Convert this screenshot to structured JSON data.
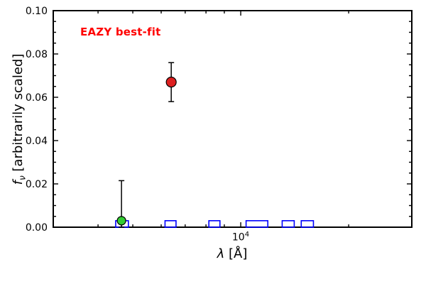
{
  "chart_data": {
    "type": "scatter",
    "title": "",
    "annotation": {
      "text": "EAZY best-fit",
      "color": "#ff0000"
    },
    "xlabel_parts": {
      "symbol": "λ",
      "rest": " [Å]"
    },
    "ylabel_parts": {
      "symbol": "f",
      "sub": "ν",
      "rest": " [arbitrarily scaled]"
    },
    "x_scale": "log",
    "xlim": [
      3000,
      30000
    ],
    "ylim": [
      0.0,
      0.1
    ],
    "yticks": [
      {
        "value": 0.0,
        "label": "0.00"
      },
      {
        "value": 0.02,
        "label": "0.02"
      },
      {
        "value": 0.04,
        "label": "0.04"
      },
      {
        "value": 0.06,
        "label": "0.06"
      },
      {
        "value": 0.08,
        "label": "0.08"
      },
      {
        "value": 0.1,
        "label": "0.10"
      }
    ],
    "y_minor_step": 0.005,
    "xtick_major": {
      "value": 10000,
      "base": "10",
      "exp": "4"
    },
    "x_minor_ticks": [
      3000,
      4000,
      5000,
      6000,
      7000,
      8000,
      9000,
      20000,
      30000
    ],
    "grid": false,
    "legend_position": "none",
    "series": [
      {
        "name": "model-photometry-boxes",
        "style": "open-box",
        "color": "#0000ff",
        "boxes": [
          {
            "xmin": 4480,
            "xmax": 4860,
            "top": 0.003
          },
          {
            "xmin": 6150,
            "xmax": 6600,
            "top": 0.003
          },
          {
            "xmin": 8150,
            "xmax": 8750,
            "top": 0.003
          },
          {
            "xmin": 10350,
            "xmax": 11900,
            "top": 0.003
          },
          {
            "xmin": 13050,
            "xmax": 14100,
            "top": 0.003
          },
          {
            "xmin": 14750,
            "xmax": 15950,
            "top": 0.003
          }
        ]
      },
      {
        "name": "observed-photometry-points",
        "style": "circle-errorbar",
        "points": [
          {
            "x": 4650,
            "y": 0.003,
            "err_up": 0.0185,
            "err_down": 0.003,
            "color": "#33cc33",
            "radius": 6
          },
          {
            "x": 6400,
            "y": 0.067,
            "err_up": 0.009,
            "err_down": 0.009,
            "color": "#dd2020",
            "radius": 7
          }
        ]
      }
    ]
  }
}
